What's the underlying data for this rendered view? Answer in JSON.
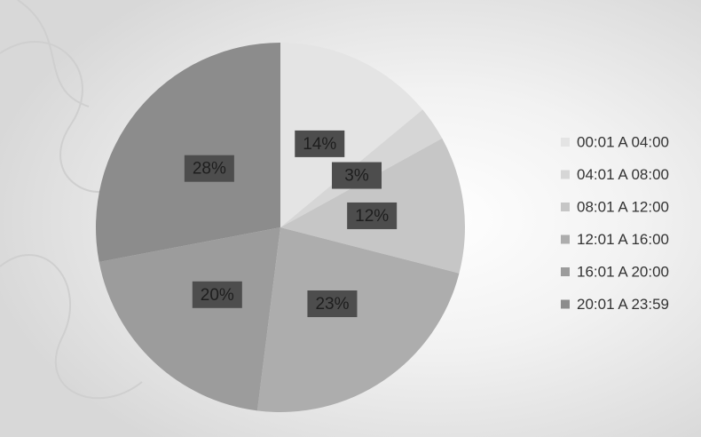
{
  "chart_data": {
    "type": "pie",
    "categories": [
      "00:01 A 04:00",
      "04:01 A 08:00",
      "08:01 A 12:00",
      "12:01 A 16:00",
      "16:01 A 20:00",
      "20:01 A 23:59"
    ],
    "values": [
      14,
      3,
      12,
      23,
      20,
      28
    ],
    "value_labels": [
      "14%",
      "3%",
      "12%",
      "23%",
      "20%",
      "28%"
    ],
    "colors": [
      "#e4e4e4",
      "#d6d6d6",
      "#c6c6c6",
      "#adadad",
      "#9c9c9c",
      "#8c8c8c"
    ],
    "legend": "right"
  }
}
